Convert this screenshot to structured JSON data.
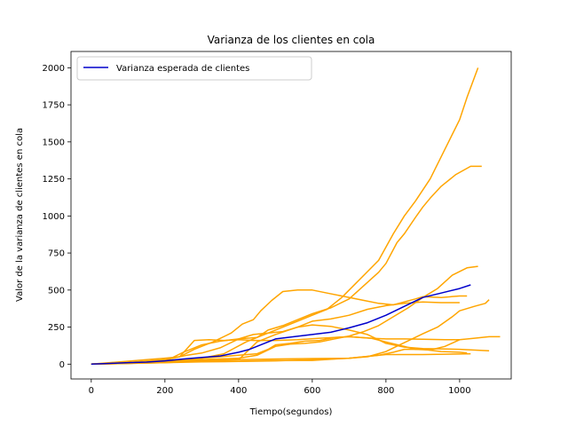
{
  "chart_data": {
    "type": "line",
    "title": "Varianza de los clientes en cola",
    "xlabel": "Tiempo(segundos)",
    "ylabel": "Valor de la varianza de clientes en cola",
    "xlim": [
      -55,
      1140
    ],
    "ylim": [
      -100,
      2110
    ],
    "xticks": [
      0,
      200,
      400,
      600,
      800,
      1000
    ],
    "yticks": [
      0,
      250,
      500,
      750,
      1000,
      1250,
      1500,
      1750,
      2000
    ],
    "grid": false,
    "legend_position": "top-left",
    "colors": {
      "mean": "#0000cc",
      "sample": "#ffa500"
    },
    "series": [
      {
        "name": "Varianza esperada de clientes",
        "color": "#0000cc",
        "width": 1.5,
        "points": [
          [
            0,
            0
          ],
          [
            50,
            5
          ],
          [
            100,
            10
          ],
          [
            150,
            14
          ],
          [
            200,
            22
          ],
          [
            250,
            35
          ],
          [
            300,
            45
          ],
          [
            350,
            55
          ],
          [
            400,
            80
          ],
          [
            430,
            100
          ],
          [
            460,
            130
          ],
          [
            500,
            170
          ],
          [
            550,
            185
          ],
          [
            600,
            200
          ],
          [
            650,
            215
          ],
          [
            700,
            245
          ],
          [
            750,
            280
          ],
          [
            800,
            330
          ],
          [
            850,
            390
          ],
          [
            900,
            450
          ],
          [
            950,
            480
          ],
          [
            1000,
            510
          ],
          [
            1030,
            535
          ]
        ]
      },
      {
        "color": "#ffa500",
        "width": 1.5,
        "points": [
          [
            0,
            0
          ],
          [
            100,
            5
          ],
          [
            200,
            15
          ],
          [
            300,
            25
          ],
          [
            400,
            30
          ],
          [
            500,
            35
          ],
          [
            600,
            38
          ],
          [
            700,
            40
          ],
          [
            750,
            50
          ],
          [
            800,
            85
          ],
          [
            850,
            145
          ],
          [
            900,
            205
          ],
          [
            940,
            250
          ],
          [
            980,
            320
          ],
          [
            1000,
            360
          ],
          [
            1040,
            390
          ],
          [
            1070,
            410
          ],
          [
            1080,
            435
          ]
        ]
      },
      {
        "color": "#ffa500",
        "width": 1.5,
        "points": [
          [
            0,
            0
          ],
          [
            100,
            5
          ],
          [
            200,
            10
          ],
          [
            300,
            15
          ],
          [
            400,
            18
          ],
          [
            500,
            22
          ],
          [
            600,
            30
          ],
          [
            700,
            40
          ],
          [
            750,
            52
          ],
          [
            800,
            65
          ],
          [
            900,
            65
          ],
          [
            1000,
            68
          ],
          [
            1030,
            70
          ]
        ]
      },
      {
        "color": "#ffa500",
        "width": 1.5,
        "points": [
          [
            0,
            0
          ],
          [
            100,
            8
          ],
          [
            200,
            15
          ],
          [
            300,
            25
          ],
          [
            400,
            30
          ],
          [
            450,
            150
          ],
          [
            500,
            200
          ],
          [
            560,
            250
          ],
          [
            600,
            265
          ],
          [
            650,
            255
          ],
          [
            700,
            230
          ],
          [
            750,
            200
          ],
          [
            800,
            140
          ],
          [
            850,
            115
          ],
          [
            900,
            105
          ],
          [
            1000,
            100
          ],
          [
            1080,
            90
          ]
        ]
      },
      {
        "color": "#ffa500",
        "width": 1.5,
        "points": [
          [
            0,
            0
          ],
          [
            100,
            10
          ],
          [
            200,
            30
          ],
          [
            260,
            60
          ],
          [
            300,
            75
          ],
          [
            350,
            110
          ],
          [
            400,
            170
          ],
          [
            440,
            200
          ],
          [
            480,
            210
          ],
          [
            520,
            220
          ],
          [
            560,
            250
          ],
          [
            600,
            290
          ],
          [
            650,
            305
          ],
          [
            700,
            330
          ],
          [
            750,
            370
          ],
          [
            800,
            395
          ],
          [
            850,
            410
          ],
          [
            900,
            420
          ],
          [
            950,
            415
          ],
          [
            1000,
            415
          ]
        ]
      },
      {
        "color": "#ffa500",
        "width": 1.5,
        "points": [
          [
            0,
            0
          ],
          [
            100,
            10
          ],
          [
            200,
            30
          ],
          [
            240,
            50
          ],
          [
            280,
            100
          ],
          [
            330,
            150
          ],
          [
            380,
            210
          ],
          [
            410,
            270
          ],
          [
            440,
            300
          ],
          [
            460,
            360
          ],
          [
            490,
            430
          ],
          [
            520,
            490
          ],
          [
            560,
            500
          ],
          [
            600,
            500
          ],
          [
            640,
            480
          ],
          [
            680,
            460
          ],
          [
            740,
            430
          ],
          [
            780,
            410
          ],
          [
            820,
            400
          ],
          [
            880,
            440
          ],
          [
            900,
            455
          ],
          [
            950,
            450
          ],
          [
            1000,
            460
          ],
          [
            1020,
            460
          ]
        ]
      },
      {
        "color": "#ffa500",
        "width": 1.5,
        "points": [
          [
            0,
            0
          ],
          [
            100,
            8
          ],
          [
            200,
            20
          ],
          [
            250,
            80
          ],
          [
            300,
            130
          ],
          [
            350,
            155
          ],
          [
            400,
            170
          ],
          [
            450,
            180
          ],
          [
            480,
            230
          ],
          [
            520,
            260
          ],
          [
            560,
            300
          ],
          [
            600,
            340
          ],
          [
            650,
            380
          ],
          [
            700,
            440
          ],
          [
            740,
            530
          ],
          [
            780,
            620
          ],
          [
            800,
            680
          ],
          [
            830,
            820
          ],
          [
            850,
            880
          ],
          [
            880,
            990
          ],
          [
            900,
            1060
          ],
          [
            920,
            1120
          ],
          [
            950,
            1200
          ],
          [
            990,
            1280
          ],
          [
            1030,
            1335
          ],
          [
            1060,
            1335
          ]
        ]
      },
      {
        "color": "#ffa500",
        "width": 1.5,
        "points": [
          [
            0,
            0
          ],
          [
            100,
            10
          ],
          [
            200,
            25
          ],
          [
            300,
            40
          ],
          [
            360,
            70
          ],
          [
            420,
            150
          ],
          [
            460,
            190
          ],
          [
            500,
            230
          ],
          [
            560,
            290
          ],
          [
            600,
            330
          ],
          [
            640,
            370
          ],
          [
            680,
            450
          ],
          [
            700,
            500
          ],
          [
            740,
            600
          ],
          [
            780,
            700
          ],
          [
            820,
            880
          ],
          [
            850,
            1000
          ],
          [
            880,
            1100
          ],
          [
            920,
            1250
          ],
          [
            960,
            1450
          ],
          [
            1000,
            1650
          ],
          [
            1020,
            1800
          ],
          [
            1050,
            2000
          ]
        ]
      },
      {
        "color": "#ffa500",
        "width": 1.5,
        "points": [
          [
            0,
            0
          ],
          [
            100,
            5
          ],
          [
            200,
            10
          ],
          [
            300,
            20
          ],
          [
            400,
            20
          ],
          [
            500,
            25
          ],
          [
            600,
            25
          ],
          [
            700,
            40
          ],
          [
            780,
            60
          ],
          [
            820,
            80
          ],
          [
            850,
            100
          ],
          [
            900,
            100
          ],
          [
            950,
            85
          ],
          [
            1000,
            80
          ],
          [
            1020,
            75
          ]
        ]
      },
      {
        "color": "#ffa500",
        "width": 1.5,
        "points": [
          [
            0,
            0
          ],
          [
            100,
            10
          ],
          [
            200,
            25
          ],
          [
            300,
            40
          ],
          [
            400,
            60
          ],
          [
            450,
            70
          ],
          [
            480,
            100
          ],
          [
            500,
            130
          ],
          [
            540,
            140
          ],
          [
            580,
            155
          ],
          [
            620,
            160
          ],
          [
            660,
            180
          ],
          [
            700,
            185
          ],
          [
            760,
            175
          ],
          [
            800,
            150
          ],
          [
            850,
            120
          ],
          [
            880,
            100
          ],
          [
            920,
            95
          ],
          [
            960,
            120
          ],
          [
            1000,
            165
          ],
          [
            1040,
            175
          ],
          [
            1080,
            185
          ],
          [
            1110,
            185
          ]
        ]
      },
      {
        "color": "#ffa500",
        "width": 1.5,
        "points": [
          [
            0,
            0
          ],
          [
            100,
            10
          ],
          [
            200,
            20
          ],
          [
            300,
            30
          ],
          [
            400,
            40
          ],
          [
            450,
            60
          ],
          [
            500,
            120
          ],
          [
            540,
            135
          ],
          [
            580,
            140
          ],
          [
            620,
            150
          ],
          [
            660,
            170
          ],
          [
            700,
            190
          ],
          [
            740,
            220
          ],
          [
            780,
            260
          ],
          [
            820,
            320
          ],
          [
            860,
            380
          ],
          [
            900,
            450
          ],
          [
            940,
            510
          ],
          [
            980,
            600
          ],
          [
            1020,
            650
          ],
          [
            1050,
            660
          ]
        ]
      },
      {
        "color": "#ffa500",
        "width": 1.5,
        "points": [
          [
            0,
            0
          ],
          [
            50,
            10
          ],
          [
            100,
            20
          ],
          [
            150,
            30
          ],
          [
            200,
            40
          ],
          [
            240,
            50
          ],
          [
            280,
            160
          ],
          [
            320,
            165
          ],
          [
            360,
            160
          ],
          [
            400,
            165
          ],
          [
            440,
            160
          ],
          [
            500,
            160
          ],
          [
            560,
            165
          ],
          [
            620,
            175
          ],
          [
            660,
            180
          ],
          [
            700,
            185
          ],
          [
            760,
            175
          ],
          [
            800,
            170
          ],
          [
            850,
            170
          ],
          [
            900,
            168
          ],
          [
            960,
            165
          ],
          [
            1000,
            165
          ]
        ]
      }
    ]
  }
}
